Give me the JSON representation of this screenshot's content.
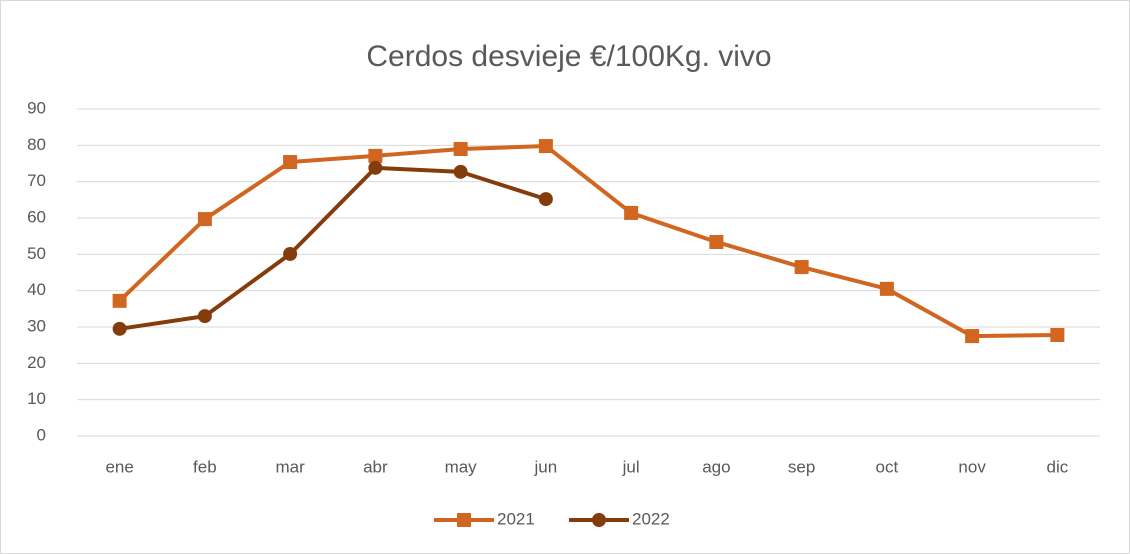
{
  "chart_data": {
    "type": "line",
    "title": "Cerdos desvieje €/100Kg. vivo",
    "categories": [
      "ene",
      "feb",
      "mar",
      "abr",
      "may",
      "jun",
      "jul",
      "ago",
      "sep",
      "oct",
      "nov",
      "dic"
    ],
    "series": [
      {
        "name": "2021",
        "color": "#d0661f",
        "marker": "square",
        "values": [
          37.2,
          59.7,
          75.4,
          77.1,
          79,
          79.8,
          61.4,
          53.4,
          46.5,
          40.5,
          27.5,
          27.8
        ]
      },
      {
        "name": "2022",
        "color": "#843c0c",
        "marker": "circle",
        "values": [
          29.5,
          33,
          50.1,
          73.8,
          72.7,
          65.2,
          null,
          null,
          null,
          null,
          null,
          null
        ]
      }
    ],
    "ylim": [
      0,
      90
    ],
    "yticks": [
      0,
      10,
      20,
      30,
      40,
      50,
      60,
      70,
      80,
      90
    ],
    "grid": true,
    "legend": "bottom"
  }
}
